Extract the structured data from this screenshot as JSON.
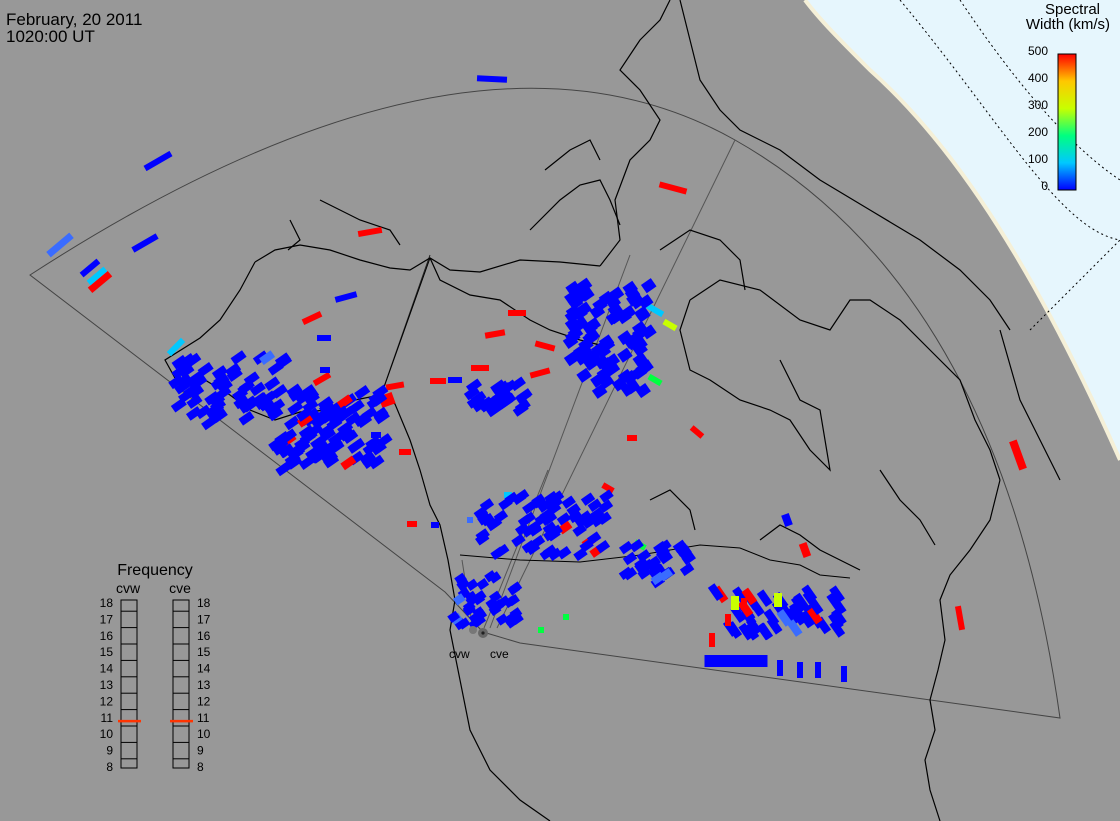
{
  "header": {
    "date": "February, 20 2011",
    "time": "1020:00 UT"
  },
  "colorbar": {
    "title_line1": "Spectral",
    "title_line2": "Width (km/s)",
    "ticks": [
      "500",
      "400",
      "300",
      "200",
      "100",
      "0"
    ],
    "gradient": [
      "#0000ff",
      "#00c8ff",
      "#00ff80",
      "#c8ff00",
      "#ffc800",
      "#ff0000"
    ]
  },
  "frequency_panel": {
    "title": "Frequency",
    "col_left": "cvw",
    "col_right": "cve",
    "levels": [
      "18",
      "17",
      "16",
      "15",
      "14",
      "13",
      "12",
      "11",
      "10",
      "9",
      "8"
    ],
    "cvw_value": 10.8,
    "cve_value": 10.8,
    "marker_color": "#ff3300"
  },
  "radars": {
    "west": "cvw",
    "east": "cve"
  },
  "colors": {
    "map_background": "#989898",
    "day_region": "#e6f6fd",
    "scatter_low": "#0000ff",
    "scatter_high": "#ff0000"
  }
}
